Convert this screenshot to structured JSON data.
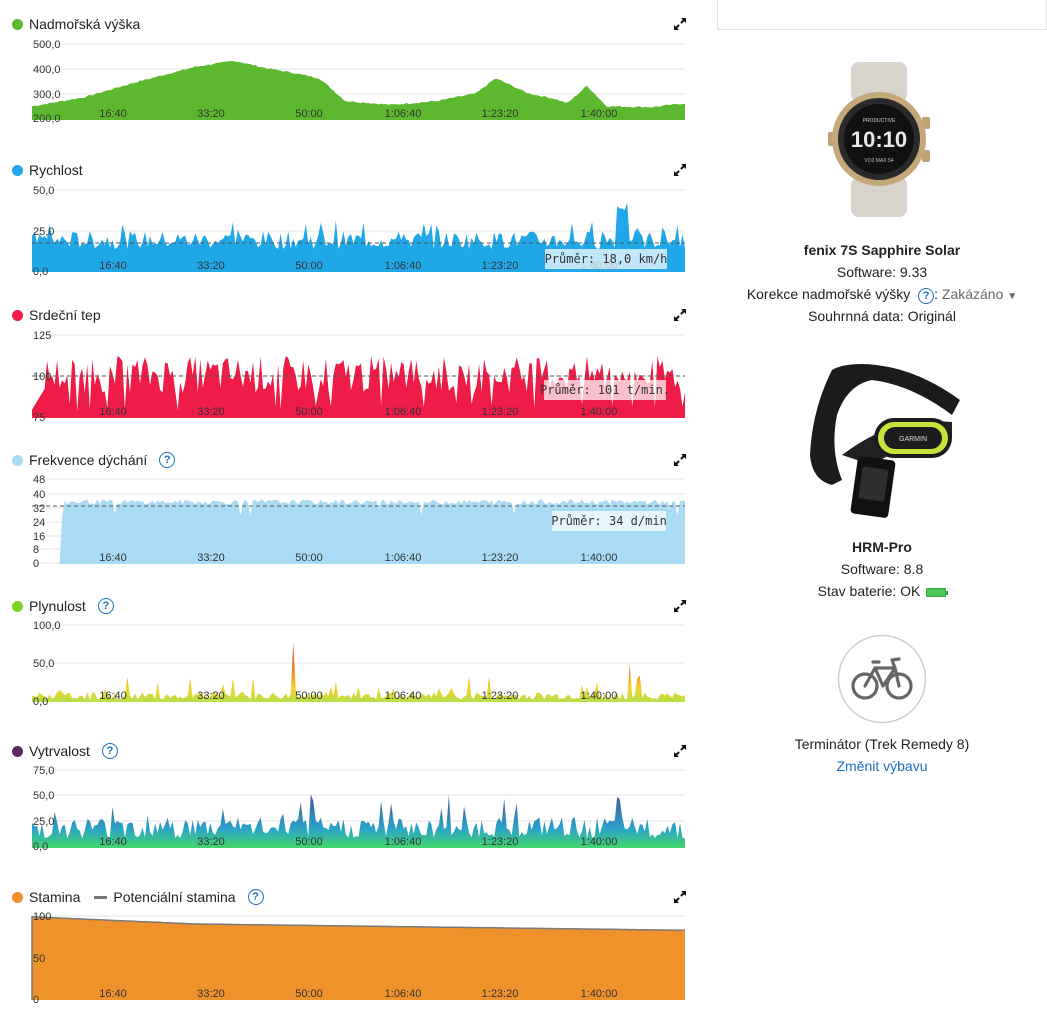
{
  "charts": [
    {
      "id": "elevation",
      "title": "Nadmořská výška",
      "color": "#5cb82f",
      "help": false,
      "y_ticks": [
        "500,0",
        "400,0",
        "300,0",
        "200,0"
      ],
      "avg_label": ""
    },
    {
      "id": "speed",
      "title": "Rychlost",
      "color": "#20a7e8",
      "help": false,
      "y_ticks": [
        "50,0",
        "25,0",
        "0,0"
      ],
      "avg_label": "Průměr: 18,0 km/h"
    },
    {
      "id": "heart-rate",
      "title": "Srdeční tep",
      "color": "#ee1c47",
      "help": false,
      "y_ticks": [
        "125",
        "100",
        "75"
      ],
      "avg_label": "Průměr: 101 t/min."
    },
    {
      "id": "respiration",
      "title": "Frekvence dýchání",
      "color": "#a9dcf4",
      "help": true,
      "y_ticks": [
        "48",
        "40",
        "32",
        "24",
        "16",
        "8",
        "0"
      ],
      "avg_label": "Průměr: 34 d/min"
    },
    {
      "id": "flow",
      "title": "Plynulost",
      "color": "#7ed321",
      "help": true,
      "y_ticks": [
        "100,0",
        "50,0",
        "0,0"
      ],
      "avg_label": ""
    },
    {
      "id": "grit",
      "title": "Vytrvalost",
      "color": "#5b2a5e",
      "help": true,
      "y_ticks": [
        "75,0",
        "50,0",
        "25,0",
        "0,0"
      ],
      "avg_label": ""
    },
    {
      "id": "stamina",
      "title": "Stamina",
      "secondary_title": "Potenciální stamina",
      "color": "#f0922b",
      "help": true,
      "y_ticks": [
        "100",
        "50",
        "0"
      ],
      "avg_label": ""
    }
  ],
  "x_ticks": [
    "16:40",
    "33:20",
    "50:00",
    "1:06:40",
    "1:23:20",
    "1:40:00"
  ],
  "devices": [
    {
      "name": "fenix 7S Sapphire Solar",
      "software": "Software: 9.33",
      "altitude_label": "Korekce nadmořské výšky",
      "altitude_value": "Zakázáno",
      "summary": "Souhrnná data: Originál",
      "watch_time": "10:10"
    },
    {
      "name": "HRM-Pro",
      "software": "Software: 8.8",
      "battery": "Stav baterie: OK",
      "brand": "GARMIN"
    }
  ],
  "gear": {
    "name": "Terminátor (Trek Remedy 8)",
    "change_link": "Změnit výbavu"
  }
}
